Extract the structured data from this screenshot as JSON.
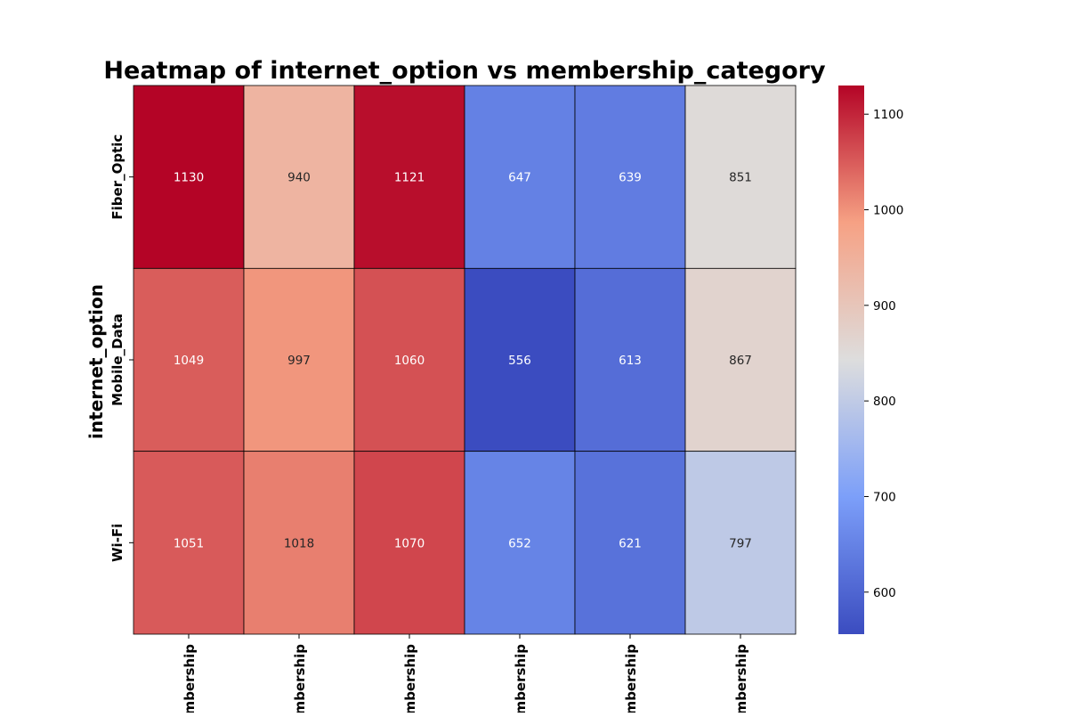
{
  "chart_data": {
    "type": "heatmap",
    "title": "Heatmap of internet_option vs membership_category",
    "xlabel": "",
    "ylabel": "internet_option",
    "rows": [
      "Fiber_Optic",
      "Mobile_Data",
      "Wi-Fi"
    ],
    "columns": [
      "mbership",
      "mbership",
      "mbership",
      "mbership",
      "mbership",
      "mbership"
    ],
    "values": [
      [
        1130,
        940,
        1121,
        647,
        639,
        851
      ],
      [
        1049,
        997,
        1060,
        556,
        613,
        867
      ],
      [
        1051,
        1018,
        1070,
        652,
        621,
        797
      ]
    ],
    "colormap": "coolwarm",
    "vmin": 556,
    "vmax": 1130,
    "colorbar_ticks": [
      600,
      700,
      800,
      900,
      1000,
      1100
    ],
    "cell_border_color": "#000000"
  }
}
